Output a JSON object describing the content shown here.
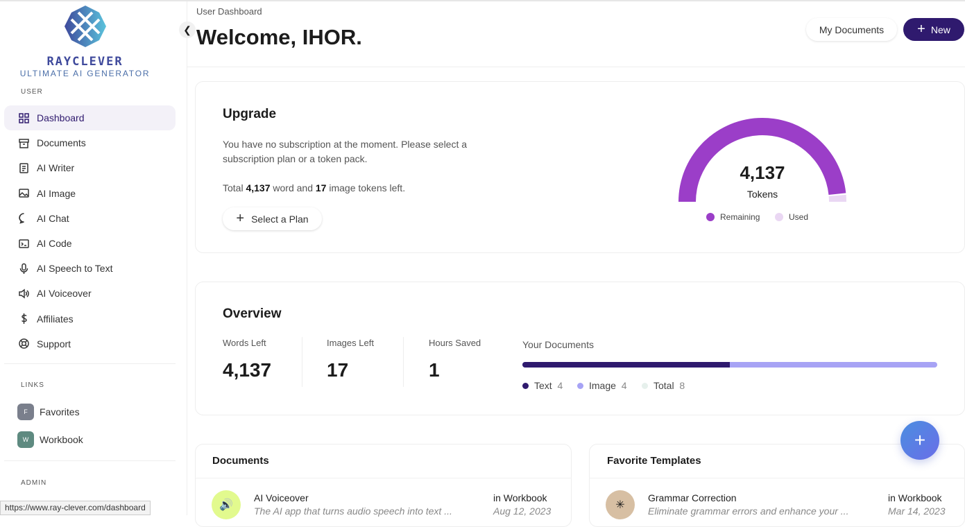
{
  "brand": {
    "name": "RAYCLEVER",
    "tagline": "ULTIMATE AI GENERATOR"
  },
  "sidebar": {
    "user_label": "USER",
    "items": [
      {
        "label": "Dashboard",
        "icon": "grid-icon"
      },
      {
        "label": "Documents",
        "icon": "archive-icon"
      },
      {
        "label": "AI Writer",
        "icon": "document-icon"
      },
      {
        "label": "AI Image",
        "icon": "image-icon"
      },
      {
        "label": "AI Chat",
        "icon": "chat-icon"
      },
      {
        "label": "AI Code",
        "icon": "terminal-icon"
      },
      {
        "label": "AI Speech to Text",
        "icon": "microphone-icon"
      },
      {
        "label": "AI Voiceover",
        "icon": "speaker-icon"
      },
      {
        "label": "Affiliates",
        "icon": "dollar-icon"
      },
      {
        "label": "Support",
        "icon": "lifebuoy-icon"
      }
    ],
    "links_label": "LINKS",
    "links": [
      {
        "badge": "F",
        "label": "Favorites",
        "color": "#7a7f8c"
      },
      {
        "badge": "W",
        "label": "Workbook",
        "color": "#5e8a80"
      }
    ],
    "admin_label": "ADMIN"
  },
  "header": {
    "breadcrumb": "User Dashboard",
    "title": "Welcome, IHOR.",
    "my_documents": "My Documents",
    "new": "New"
  },
  "upgrade": {
    "title": "Upgrade",
    "text": "You have no subscription at the moment. Please select a subscription plan or a token pack.",
    "total_prefix": "Total ",
    "words": "4,137",
    "mid": " word and ",
    "images": "17",
    "suffix": " image tokens left.",
    "select_plan": "Select a Plan",
    "gauge": {
      "value": "4,137",
      "label": "Tokens",
      "remaining_fraction": 0.97,
      "legend": [
        "Remaining",
        "Used"
      ],
      "colors": {
        "remaining": "#9b3ec8",
        "used": "#ead7f3"
      }
    }
  },
  "overview": {
    "title": "Overview",
    "stats": [
      {
        "label": "Words Left",
        "value": "4,137"
      },
      {
        "label": "Images Left",
        "value": "17"
      },
      {
        "label": "Hours Saved",
        "value": "1"
      }
    ],
    "your_documents": "Your Documents",
    "bar": {
      "text": 4,
      "image": 4,
      "total": 8
    },
    "legend": [
      {
        "label": "Text",
        "value": "4",
        "color": "#2f1a6e"
      },
      {
        "label": "Image",
        "value": "4",
        "color": "#a7a3f5"
      },
      {
        "label": "Total",
        "value": "8",
        "color": "#e6f0ec"
      }
    ]
  },
  "documents": {
    "title": "Documents",
    "rows": [
      {
        "title": "AI Voiceover",
        "desc": "The AI app that turns audio speech into text ...",
        "location": "in Workbook",
        "date": "Aug 12, 2023"
      }
    ]
  },
  "favorites": {
    "title": "Favorite Templates",
    "rows": [
      {
        "title": "Grammar Correction",
        "desc": "Eliminate grammar errors and enhance your ...",
        "location": "in Workbook",
        "date": "Mar 14, 2023"
      }
    ]
  },
  "status_url": "https://www.ray-clever.com/dashboard"
}
